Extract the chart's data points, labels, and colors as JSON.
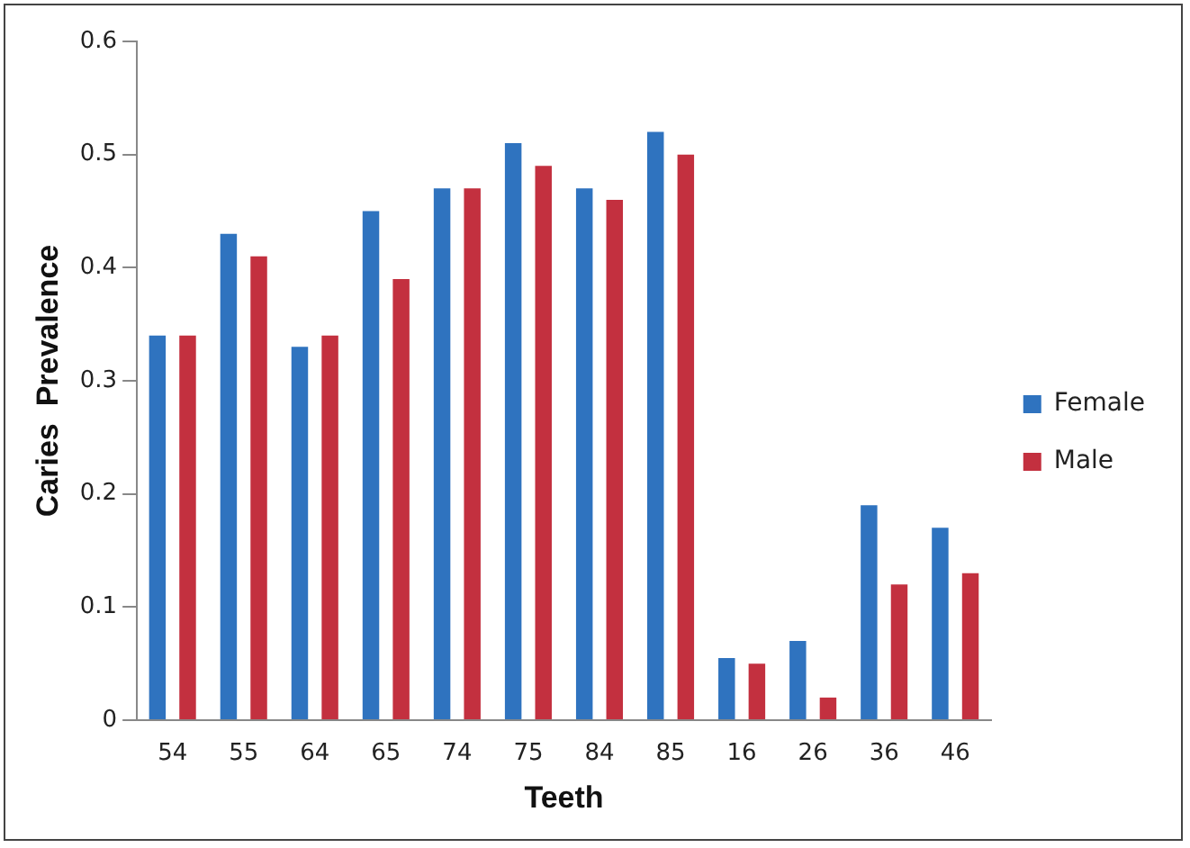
{
  "chart_data": {
    "type": "bar",
    "xlabel": "Teeth",
    "ylabel": "Caries  Prevalence",
    "categories": [
      "54",
      "55",
      "64",
      "65",
      "74",
      "75",
      "84",
      "85",
      "16",
      "26",
      "36",
      "46"
    ],
    "series": [
      {
        "name": "Female",
        "color": "#2f73bf",
        "values": [
          0.34,
          0.43,
          0.33,
          0.45,
          0.47,
          0.51,
          0.47,
          0.52,
          0.055,
          0.07,
          0.19,
          0.17
        ]
      },
      {
        "name": "Male",
        "color": "#c3303f",
        "values": [
          0.34,
          0.41,
          0.34,
          0.39,
          0.47,
          0.49,
          0.46,
          0.5,
          0.05,
          0.02,
          0.12,
          0.13
        ]
      }
    ],
    "ylim": [
      0,
      0.6
    ],
    "yticks": [
      0,
      0.1,
      0.2,
      0.3,
      0.4,
      0.5,
      0.6
    ],
    "grid": false,
    "legend": "right"
  }
}
